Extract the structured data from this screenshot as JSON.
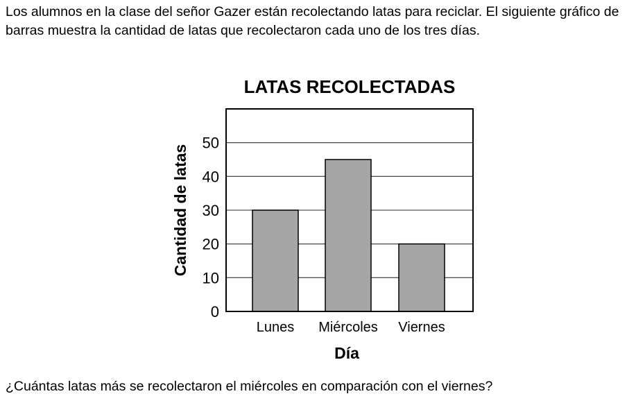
{
  "intro": "Los alumnos en la clase del señor Gazer están recolectando latas para reciclar. El siguiente gráfico de barras muestra la cantidad de latas que recolectaron cada uno de los tres días.",
  "question": "¿Cuántas latas más se recolectaron el miércoles en comparación con el viernes?",
  "chart_data": {
    "type": "bar",
    "title": "LATAS RECOLECTADAS",
    "xlabel": "Día",
    "ylabel": "Cantidad de latas",
    "categories": [
      "Lunes",
      "Miércoles",
      "Viernes"
    ],
    "values": [
      30,
      45,
      20
    ],
    "ylim": [
      0,
      60
    ],
    "yticks": [
      0,
      10,
      20,
      30,
      40,
      50
    ],
    "grid": true,
    "bar_color": "#a6a6a6"
  }
}
